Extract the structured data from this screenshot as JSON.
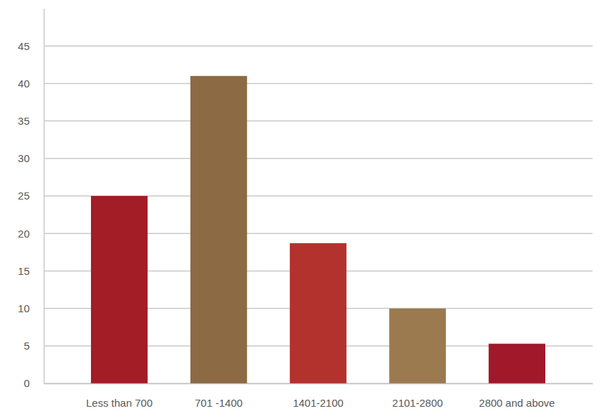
{
  "chart_data": {
    "type": "bar",
    "categories": [
      "Less than 700",
      "701 -1400",
      "1401-2100",
      "2101-2800",
      "2800 and above"
    ],
    "values": [
      25,
      41,
      18.7,
      10,
      5.3
    ],
    "colors": [
      "#a31d26",
      "#8c6a44",
      "#b3322e",
      "#9c7a50",
      "#a0182a"
    ],
    "ylim": [
      0,
      50
    ],
    "yticks": [
      0,
      5,
      10,
      15,
      20,
      25,
      30,
      35,
      40,
      45
    ],
    "grid": true
  }
}
